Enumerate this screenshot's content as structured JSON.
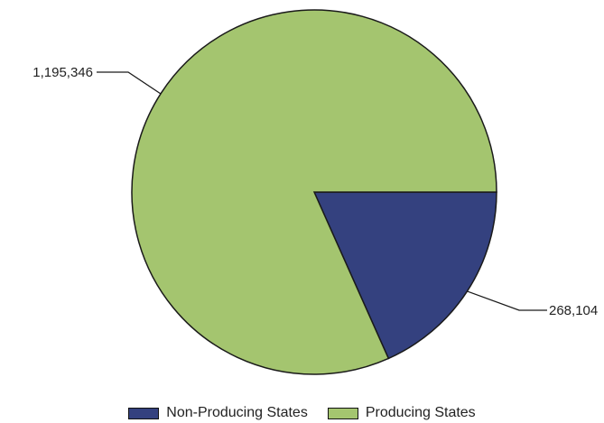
{
  "chart_data": {
    "type": "pie",
    "title": "",
    "categories": [
      "Non-Producing States",
      "Producing States"
    ],
    "values": [
      268104,
      1195346
    ],
    "value_labels": [
      "268,104",
      "1,195,346"
    ],
    "colors": [
      "#34417f",
      "#a4c56f"
    ],
    "start_angle_deg": 0,
    "direction": "clockwise",
    "legend_position": "bottom"
  }
}
